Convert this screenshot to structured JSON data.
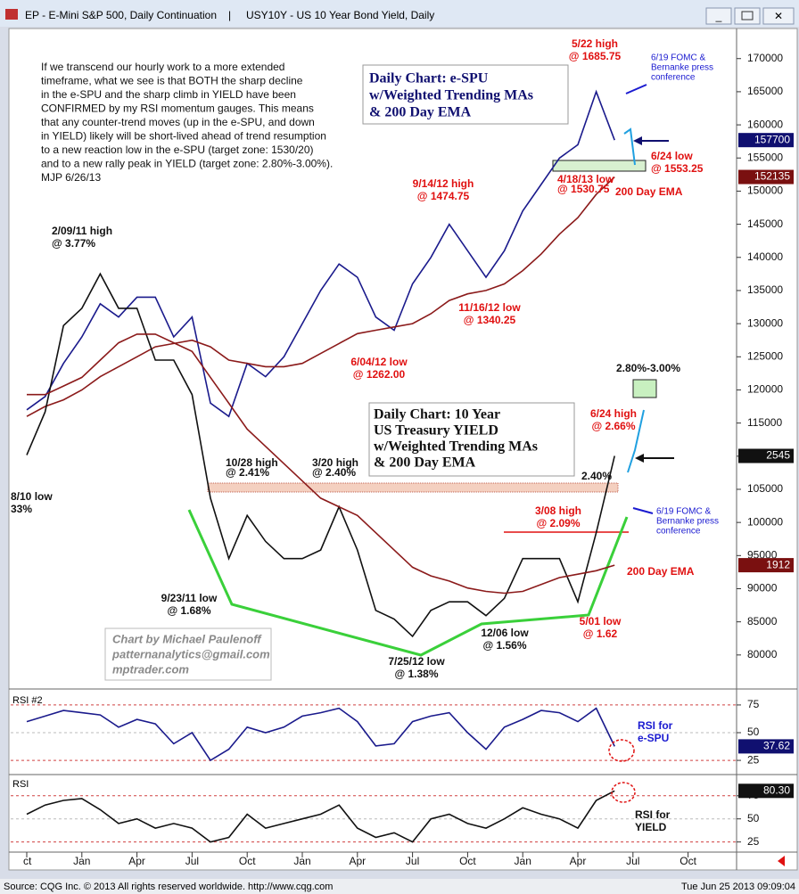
{
  "window": {
    "title_left": "EP - E-Mini S&P 500, Daily Continuation",
    "title_right": "USY10Y - US 10 Year Bond Yield, Daily"
  },
  "footer": {
    "source": "Source: CQG Inc. © 2013 All rights reserved worldwide. http://www.cqg.com",
    "timestamp": "Tue Jun 25 2013 09:09:04"
  },
  "price_tags": {
    "es": "157700",
    "es_ema": "152135",
    "yield": "2545",
    "yield_ema": "1912",
    "rsi_es": "37.62",
    "rsi_yield": "80.30"
  },
  "annotations": {
    "commentary": [
      "If we transcend our hourly work to a more extended",
      "timeframe, what we see is that BOTH the sharp decline",
      "in the e-SPU and the sharp climb in YIELD have been",
      "CONFIRMED by my RSI momentum gauges. This means",
      "that any counter-trend moves (up in the e-SPU, and down",
      "in YIELD) likely will be short-lived ahead of trend resumption",
      "to a new reaction low in the e-SPU (target zone: 1530/20)",
      "and to a new rally peak in YIELD (target zone: 2.80%-3.00%).",
      "MJP  6/26/13"
    ],
    "box_es": [
      "Daily Chart:  e-SPU",
      "w/Weighted Trending MAs",
      "& 200 Day EMA"
    ],
    "box_yield": [
      "Daily Chart: 10 Year",
      "US Treasury YIELD",
      "w/Weighted Trending MAs",
      "& 200 Day EMA"
    ],
    "high_522": [
      "5/22 high",
      "@ 1685.75"
    ],
    "fomc_es": [
      "6/19 FOMC &",
      "Bernanke press",
      "conference"
    ],
    "low_624": [
      "6/24 low",
      "@ 1553.25"
    ],
    "low_418": [
      "4/18/13 low",
      "@ 1530.75"
    ],
    "ema_es": "200 Day EMA",
    "high_914": [
      "9/14/12 high",
      "@ 1474.75"
    ],
    "high_209": [
      "2/09/11 high",
      "@ 3.77%"
    ],
    "low_1116": [
      "11/16/12 low",
      "@ 1340.25"
    ],
    "low_604": [
      "6/04/12 low",
      "@ 1262.00"
    ],
    "target_yield": "2.80%-3.00%",
    "high_624": [
      "6/24 high",
      "@ 2.66%"
    ],
    "high_1028": [
      "10/28 high",
      "@ 2.41%"
    ],
    "high_320": [
      "3/20 high",
      "@ 2.40%"
    ],
    "level_240": "2.40%",
    "low_810": [
      "8/10 low",
      "33%"
    ],
    "fomc_yield": [
      "6/19 FOMC &",
      "Bernanke press",
      "conference"
    ],
    "high_308": [
      "3/08 high",
      "@ 2.09%"
    ],
    "ema_yield": "200 Day EMA",
    "low_923": [
      "9/23/11 low",
      "@ 1.68%"
    ],
    "credit": [
      "Chart by Michael Paulenoff",
      "patternanalytics@gmail.com",
      "mptrader.com"
    ],
    "low_1206": [
      "12/06 low",
      "@ 1.56%"
    ],
    "low_501": [
      "5/01 low",
      "@ 1.62"
    ],
    "low_725": [
      "7/25/12 low",
      "@ 1.38%"
    ],
    "rsi_es": [
      "RSI for",
      "e-SPU"
    ],
    "rsi_yield": [
      "RSI for",
      "YIELD"
    ]
  },
  "chart_data": [
    {
      "type": "line",
      "categories": [
        "ct",
        null,
        null,
        "Jan",
        null,
        null,
        "Apr",
        null,
        null,
        "Jul",
        null,
        null,
        "Oct",
        null,
        null,
        "Jan",
        null,
        null,
        "Apr",
        null,
        null,
        "Jul",
        null,
        null,
        "Oct",
        null,
        null,
        "Jan",
        null,
        null,
        "Apr",
        null,
        null,
        "Jul",
        null,
        null,
        "Oct",
        null,
        null
      ],
      "ylim": [
        75000,
        174000
      ],
      "yticks": [
        80000,
        85000,
        90000,
        95000,
        100000,
        105000,
        110000,
        115000,
        120000,
        125000,
        130000,
        135000,
        140000,
        145000,
        150000,
        155000,
        160000,
        165000,
        170000
      ],
      "y2lim": [
        1.2,
        5.0
      ],
      "series": [
        {
          "color": "#1a1a8c",
          "values": [
            117000,
            119000,
            124000,
            128000,
            133000,
            131000,
            134000,
            134000,
            128000,
            131000,
            118000,
            116000,
            124000,
            122000,
            125000,
            130000,
            135000,
            139000,
            137000,
            131000,
            129000,
            136000,
            140000,
            145000,
            141000,
            137000,
            141000,
            147000,
            151000,
            155000,
            157000,
            165000,
            157700,
            null,
            null,
            null,
            null,
            null,
            null
          ]
        },
        {
          "color": "#8b1a1a",
          "values": [
            116000,
            117500,
            118500,
            120000,
            122000,
            123500,
            125000,
            126500,
            127000,
            127500,
            126500,
            124500,
            124000,
            123500,
            123500,
            124000,
            125500,
            127000,
            128500,
            129000,
            129500,
            130000,
            131500,
            133500,
            134500,
            135000,
            136000,
            138000,
            140500,
            143500,
            146000,
            149500,
            152135,
            null,
            null,
            null,
            null,
            null,
            null
          ]
        },
        {
          "color": "#111111",
          "axis": "y2",
          "values": [
            2.55,
            2.8,
            3.3,
            3.4,
            3.6,
            3.4,
            3.4,
            3.1,
            3.1,
            2.9,
            2.3,
            1.95,
            2.2,
            2.05,
            1.95,
            1.95,
            2.0,
            2.25,
            2.0,
            1.65,
            1.6,
            1.5,
            1.65,
            1.7,
            1.7,
            1.62,
            1.72,
            1.95,
            1.95,
            1.95,
            1.7,
            2.1,
            2.545,
            null,
            null,
            null,
            null,
            null,
            null
          ]
        },
        {
          "color": "#8b1a1a",
          "axis": "y2",
          "values": [
            2.9,
            2.9,
            2.95,
            3.0,
            3.1,
            3.2,
            3.25,
            3.25,
            3.2,
            3.15,
            3.0,
            2.85,
            2.7,
            2.6,
            2.5,
            2.4,
            2.3,
            2.25,
            2.2,
            2.1,
            2.0,
            1.9,
            1.85,
            1.82,
            1.78,
            1.76,
            1.75,
            1.76,
            1.8,
            1.84,
            1.86,
            1.88,
            1.912,
            null,
            null,
            null,
            null,
            null,
            null
          ]
        }
      ]
    },
    {
      "type": "line",
      "title": "RSI #2",
      "ylim": [
        13,
        87
      ],
      "yticks": [
        25,
        50,
        75
      ],
      "series": [
        {
          "color": "#1a1a8c",
          "values": [
            60,
            65,
            70,
            68,
            66,
            55,
            62,
            58,
            40,
            50,
            25,
            35,
            55,
            50,
            55,
            65,
            68,
            72,
            60,
            38,
            40,
            60,
            65,
            68,
            50,
            35,
            55,
            62,
            70,
            68,
            60,
            72,
            37.62,
            null,
            null,
            null,
            null,
            null,
            null
          ]
        }
      ]
    },
    {
      "type": "line",
      "title": "RSI",
      "ylim": [
        15,
        97
      ],
      "yticks": [
        25,
        50,
        75
      ],
      "series": [
        {
          "color": "#111111",
          "values": [
            55,
            65,
            70,
            72,
            60,
            45,
            50,
            40,
            45,
            40,
            25,
            30,
            55,
            40,
            45,
            50,
            55,
            65,
            40,
            30,
            35,
            25,
            50,
            55,
            45,
            40,
            50,
            62,
            55,
            50,
            40,
            70,
            80.3,
            null,
            null,
            null,
            null,
            null,
            null
          ]
        }
      ]
    }
  ]
}
